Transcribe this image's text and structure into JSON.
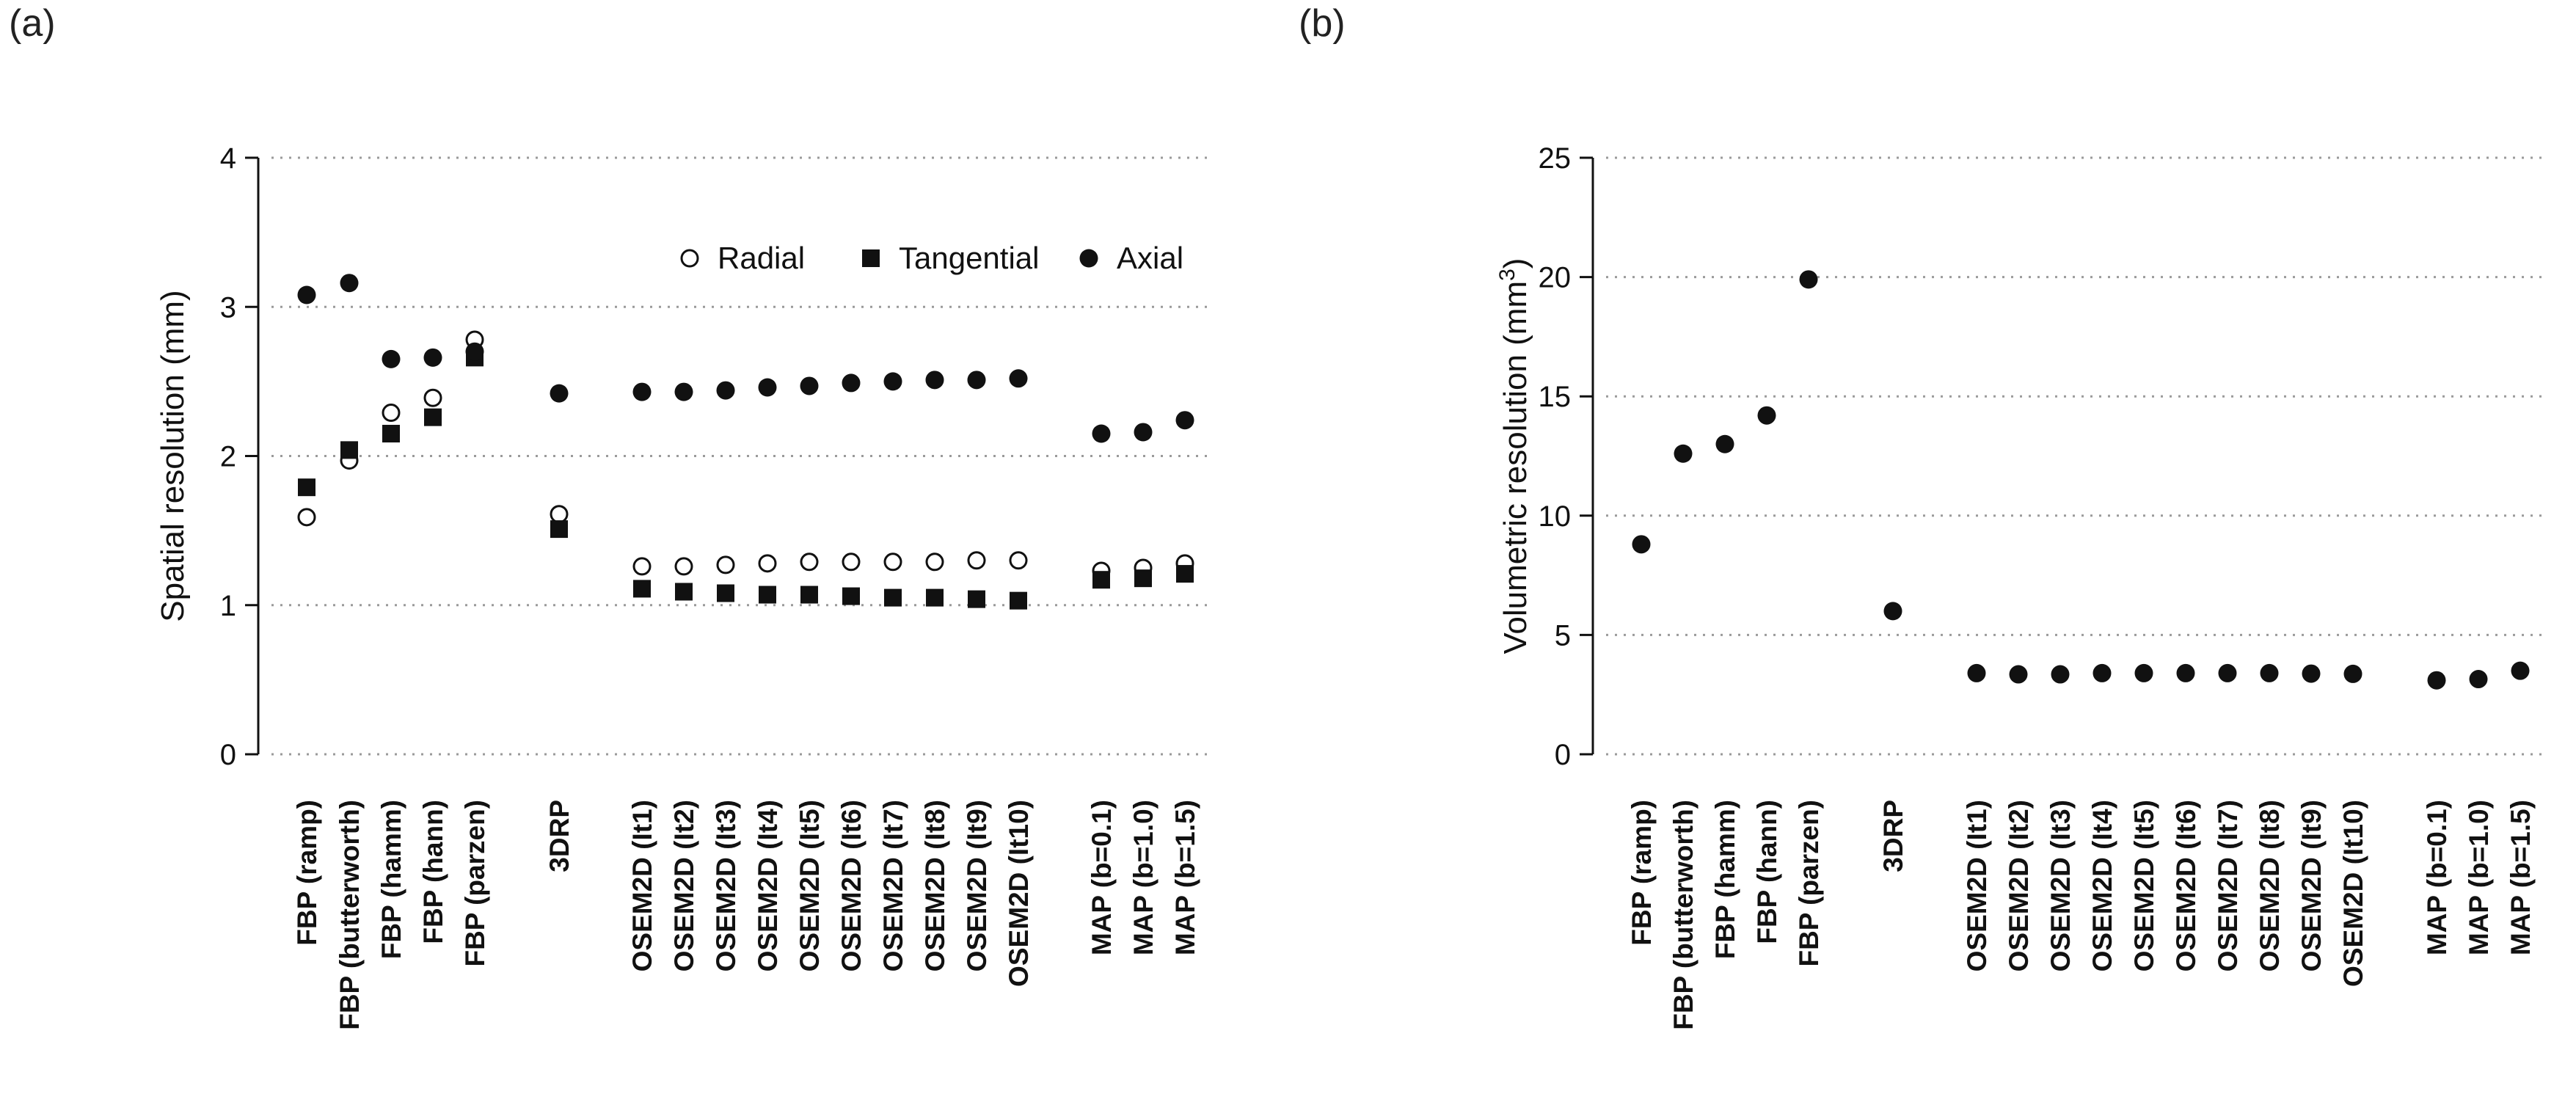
{
  "figure": {
    "label_a": "(a)",
    "label_b": "(b)"
  },
  "chart_data": [
    {
      "id": "a",
      "type": "scatter",
      "ylabel": "Spatial resolution (mm)",
      "ylim": [
        0,
        4
      ],
      "yticks": [
        "0",
        "1",
        "2",
        "3",
        "4"
      ],
      "grid": "horizontal-dotted",
      "legend_position": "top-right",
      "categories": [
        "FBP (ramp)",
        "FBP (butterworth)",
        "FBP (hamm)",
        "FBP (hann)",
        "FBP (parzen)",
        "3DRP",
        "OSEM2D (It1)",
        "OSEM2D (It2)",
        "OSEM2D (It3)",
        "OSEM2D (It4)",
        "OSEM2D (It5)",
        "OSEM2D (It6)",
        "OSEM2D (It7)",
        "OSEM2D (It8)",
        "OSEM2D (It9)",
        "OSEM2D (It10)",
        "MAP (b=0.1)",
        "MAP (b=1.0)",
        "MAP (b=1.5)"
      ],
      "groups": [
        0,
        0,
        0,
        0,
        0,
        1,
        2,
        2,
        2,
        2,
        2,
        2,
        2,
        2,
        2,
        2,
        3,
        3,
        3
      ],
      "series": [
        {
          "name": "Radial",
          "marker": "open-circle",
          "values": [
            1.59,
            1.97,
            2.29,
            2.39,
            2.78,
            1.61,
            1.26,
            1.26,
            1.27,
            1.28,
            1.29,
            1.29,
            1.29,
            1.29,
            1.3,
            1.3,
            1.23,
            1.25,
            1.28
          ]
        },
        {
          "name": "Tangential",
          "marker": "square",
          "values": [
            1.79,
            2.04,
            2.15,
            2.26,
            2.66,
            1.51,
            1.11,
            1.09,
            1.08,
            1.07,
            1.07,
            1.06,
            1.05,
            1.05,
            1.04,
            1.03,
            1.17,
            1.18,
            1.21
          ]
        },
        {
          "name": "Axial",
          "marker": "filled-circle",
          "values": [
            3.08,
            3.16,
            2.65,
            2.66,
            2.7,
            2.42,
            2.43,
            2.43,
            2.44,
            2.46,
            2.47,
            2.49,
            2.5,
            2.51,
            2.51,
            2.52,
            2.15,
            2.16,
            2.24
          ]
        }
      ]
    },
    {
      "id": "b",
      "type": "scatter",
      "ylabel": "Volumetric resolution (mm",
      "ylabel_sup": "3",
      "ylabel_end": ")",
      "ylim": [
        0,
        25
      ],
      "yticks": [
        "0",
        "5",
        "10",
        "15",
        "20",
        "25"
      ],
      "grid": "horizontal-dotted",
      "categories": [
        "FBP (ramp)",
        "FBP (butterworth)",
        "FBP (hamm)",
        "FBP (hann)",
        "FBP (parzen)",
        "3DRP",
        "OSEM2D (It1)",
        "OSEM2D (It2)",
        "OSEM2D (It3)",
        "OSEM2D (It4)",
        "OSEM2D (It5)",
        "OSEM2D (It6)",
        "OSEM2D (It7)",
        "OSEM2D (It8)",
        "OSEM2D (It9)",
        "OSEM2D (It10)",
        "MAP (b=0.1)",
        "MAP (b=1.0)",
        "MAP (b=1.5)"
      ],
      "groups": [
        0,
        0,
        0,
        0,
        0,
        1,
        2,
        2,
        2,
        2,
        2,
        2,
        2,
        2,
        2,
        2,
        3,
        3,
        3
      ],
      "series": [
        {
          "name": "Volumetric",
          "marker": "filled-circle",
          "values": [
            8.8,
            12.6,
            13.0,
            14.2,
            19.9,
            6.0,
            3.4,
            3.35,
            3.35,
            3.4,
            3.4,
            3.4,
            3.4,
            3.4,
            3.38,
            3.37,
            3.1,
            3.15,
            3.5
          ]
        }
      ]
    }
  ]
}
